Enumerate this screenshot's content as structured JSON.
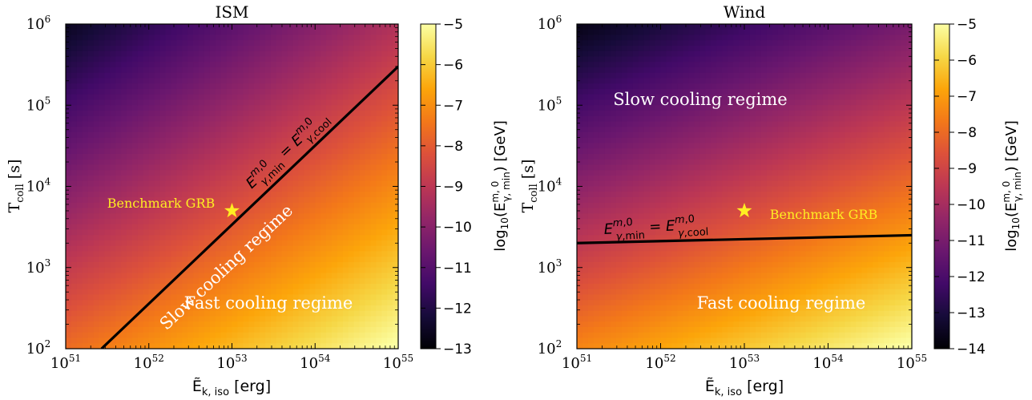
{
  "chart_data": [
    {
      "type": "heatmap",
      "title": "ISM",
      "xlabel": "Ẽ_{k,iso} [erg]",
      "ylabel": "T_coll [s]",
      "xscale": "log",
      "yscale": "log",
      "xlim": [
        1e+51,
        1e+55
      ],
      "ylim": [
        100,
        1000000
      ],
      "x_ticks": [
        51,
        52,
        53,
        54,
        55
      ],
      "y_ticks": [
        2,
        3,
        4,
        5,
        6
      ],
      "colorbar": {
        "label": "log10(E^{m,0}_{γ,min}) [GeV]",
        "range": [
          -13,
          -5
        ],
        "ticks": [
          -13,
          -12,
          -11,
          -10,
          -9,
          -8,
          -7,
          -6,
          -5
        ],
        "colormap": "inferno"
      },
      "field": "log10(E) = -13 + 2*(log10(E_k)-51) - 2.0*(log10(T)-2) approx, clipped to colorbar range",
      "boundary_line": {
        "label": "E^{m,0}_{γ,min} = E^{m,0}_{γ,cool}",
        "points": [
          {
            "x": 2.7e+51,
            "y": 100
          },
          {
            "x": 1e+55,
            "y": 300000
          }
        ]
      },
      "benchmark": {
        "label": "Benchmark GRB",
        "x": 1e+53,
        "y": 5000,
        "color": "#ffee22"
      },
      "annotations": {
        "slow": "Slow cooling regime",
        "fast": "Fast cooling regime"
      }
    },
    {
      "type": "heatmap",
      "title": "Wind",
      "xlabel": "Ẽ_{k,iso} [erg]",
      "ylabel": "T_coll [s]",
      "xscale": "log",
      "yscale": "log",
      "xlim": [
        1e+51,
        1e+55
      ],
      "ylim": [
        100,
        1000000
      ],
      "x_ticks": [
        51,
        52,
        53,
        54,
        55
      ],
      "y_ticks": [
        2,
        3,
        4,
        5,
        6
      ],
      "colorbar": {
        "label": "log10(E^{m,0}_{γ,min}) [GeV]",
        "range": [
          -14,
          -5
        ],
        "ticks": [
          -14,
          -13,
          -12,
          -11,
          -10,
          -9,
          -8,
          -7,
          -6,
          -5
        ],
        "colormap": "inferno"
      },
      "boundary_line": {
        "label": "E^{m,0}_{γ,min} = E^{m,0}_{γ,cool}",
        "points": [
          {
            "x": 1e+51,
            "y": 2000
          },
          {
            "x": 1e+55,
            "y": 2500
          }
        ]
      },
      "benchmark": {
        "label": "Benchmark GRB",
        "x": 1e+53,
        "y": 5000,
        "color": "#ffee22"
      },
      "annotations": {
        "slow": "Slow cooling regime",
        "fast": "Fast cooling regime"
      }
    }
  ]
}
